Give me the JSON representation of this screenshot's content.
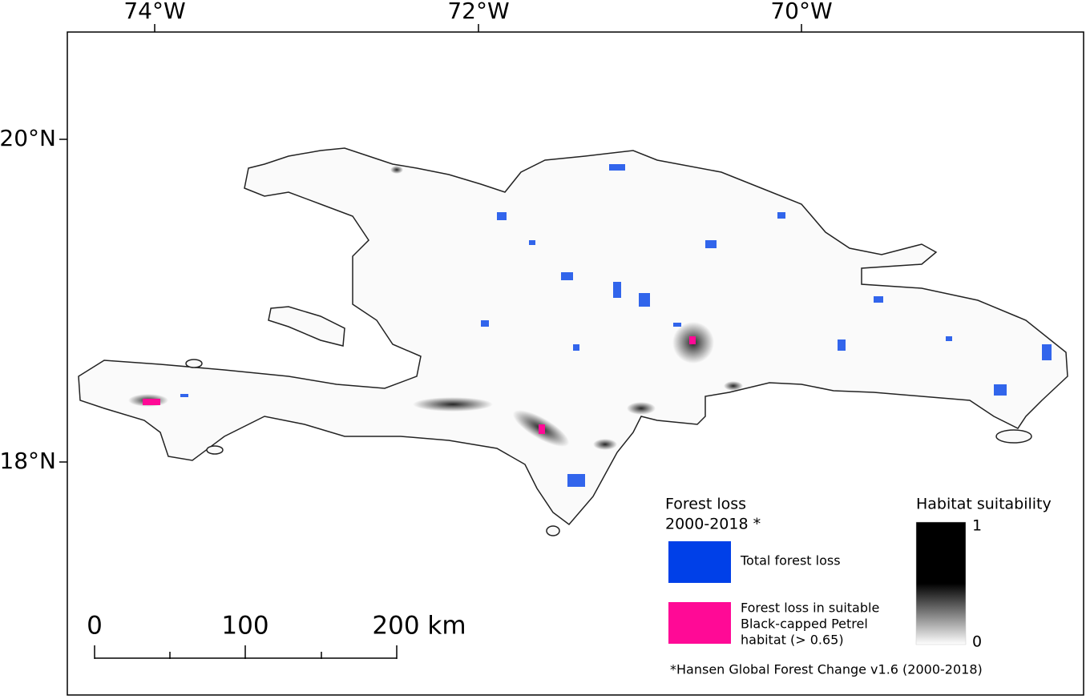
{
  "axes": {
    "longitude": [
      "74°W",
      "72°W",
      "70°W"
    ],
    "latitude": [
      "20°N",
      "18°N"
    ]
  },
  "legend": {
    "forest_loss": {
      "title": [
        "Forest loss",
        "2000-2018 *"
      ],
      "items": [
        {
          "label": [
            "Total forest loss"
          ],
          "color": "#0040e8"
        },
        {
          "label": [
            "Forest loss in suitable",
            "Black-capped Petrel",
            "habitat (> 0.65)"
          ],
          "color": "#ff0a96"
        }
      ]
    },
    "habitat": {
      "title": "Habitat suitability",
      "max": "1",
      "min": "0"
    }
  },
  "scale_bar": {
    "labels": [
      "0",
      "100",
      "200 km"
    ]
  },
  "source": "*Hansen Global Forest Change v1.6 (2000-2018)"
}
